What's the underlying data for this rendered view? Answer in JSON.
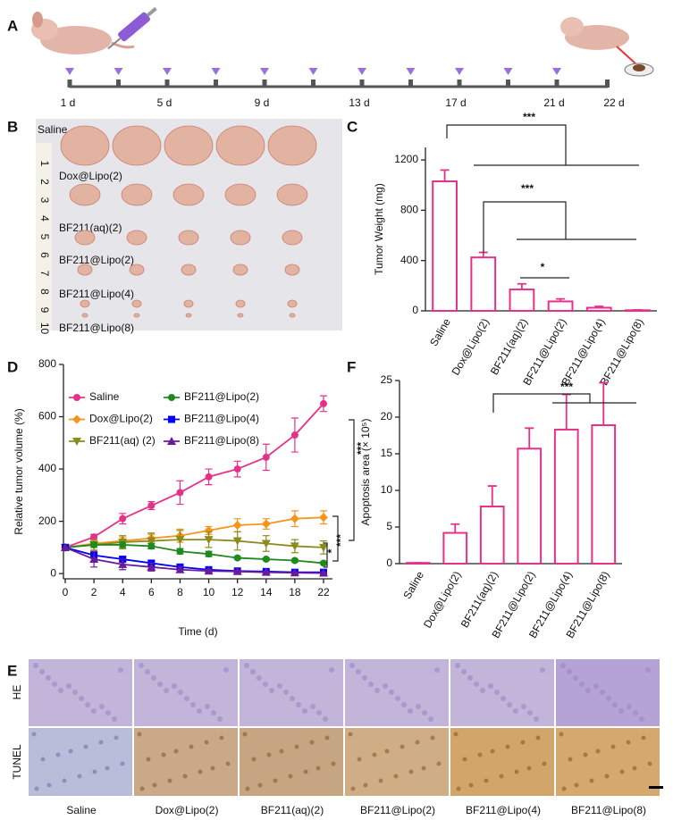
{
  "panel_a": {
    "label": "A",
    "days": [
      "1 d",
      "5 d",
      "9 d",
      "13 d",
      "17 d",
      "21 d",
      "22 d"
    ]
  },
  "panel_b": {
    "label": "B",
    "ruler": [
      "1",
      "2",
      "3",
      "4",
      "5",
      "6",
      "7",
      "8",
      "9",
      "10"
    ],
    "groups": [
      "Saline",
      "Dox@Lipo(2)",
      "BF211(aq)(2)",
      "BF211@Lipo(2)",
      "BF211@Lipo(4)",
      "BF211@Lipo(8)"
    ]
  },
  "panel_e": {
    "label": "E",
    "rows": [
      "HE",
      "TUNEL"
    ],
    "columns": [
      "Saline",
      "Dox@Lipo(2)",
      "BF211(aq)(2)",
      "BF211@Lipo(2)",
      "BF211@Lipo(4)",
      "BF211@Lipo(8)"
    ]
  },
  "chart_data": [
    {
      "type": "bar",
      "label": "C",
      "y_label": "Tumor Weight (mg)",
      "categories": [
        "Saline",
        "Dox@Lipo(2)",
        "BF211(aq)(2)",
        "BF211@Lipo(2)",
        "BF211@Lipo(4)",
        "BF211@Lipo(8)"
      ],
      "values": [
        1030,
        425,
        170,
        75,
        25,
        5
      ],
      "errors": [
        90,
        40,
        45,
        20,
        10,
        3
      ],
      "color": "#e6318b",
      "ylim": [
        0,
        1300
      ],
      "yticks": [
        0,
        400,
        800,
        1200
      ],
      "annotations": [
        "***",
        "***",
        "*"
      ]
    },
    {
      "type": "line",
      "label": "D",
      "y_label": "Relative tumor volume (%)",
      "x_label": "Time (d)",
      "categories": [
        "0",
        "2",
        "4",
        "6",
        "8",
        "10",
        "12",
        "14",
        "18",
        "22"
      ],
      "ylim": [
        -20,
        800
      ],
      "yticks": [
        0,
        200,
        400,
        600,
        800
      ],
      "series": [
        {
          "name": "Saline",
          "color": "#e6318b",
          "marker": "circle",
          "values": [
            100,
            140,
            210,
            260,
            310,
            370,
            400,
            445,
            530,
            650
          ],
          "errors": [
            0,
            10,
            20,
            15,
            45,
            30,
            30,
            50,
            65,
            30
          ]
        },
        {
          "name": "Dox@Lipo(2)",
          "color": "#f7941d",
          "marker": "diamond",
          "values": [
            100,
            115,
            125,
            135,
            145,
            165,
            185,
            190,
            210,
            215
          ],
          "errors": [
            0,
            10,
            15,
            15,
            25,
            15,
            25,
            20,
            30,
            25
          ]
        },
        {
          "name": "BF211(aq) (2)",
          "color": "#8b8b1e",
          "marker": "triangle-down",
          "values": [
            100,
            110,
            120,
            125,
            130,
            130,
            125,
            115,
            105,
            100
          ],
          "errors": [
            0,
            20,
            25,
            30,
            35,
            30,
            35,
            30,
            25,
            25
          ]
        },
        {
          "name": "BF211@Lipo(2)",
          "color": "#1f8a1f",
          "marker": "circle",
          "values": [
            100,
            110,
            110,
            105,
            85,
            75,
            60,
            55,
            50,
            40
          ],
          "errors": [
            0,
            10,
            10,
            10,
            10,
            10,
            5,
            5,
            5,
            5
          ]
        },
        {
          "name": "BF211@Lipo(4)",
          "color": "#0000ff",
          "marker": "square",
          "values": [
            100,
            70,
            55,
            40,
            25,
            15,
            10,
            8,
            5,
            5
          ],
          "errors": [
            0,
            10,
            10,
            10,
            5,
            5,
            3,
            3,
            2,
            2
          ]
        },
        {
          "name": "BF211@Lipo(8)",
          "color": "#6a1b9a",
          "marker": "triangle",
          "values": [
            100,
            55,
            35,
            25,
            15,
            10,
            8,
            5,
            3,
            2
          ],
          "errors": [
            0,
            30,
            20,
            15,
            10,
            5,
            5,
            3,
            2,
            2
          ]
        }
      ],
      "annotations": [
        "***",
        "***",
        "*"
      ]
    },
    {
      "type": "bar",
      "label": "F",
      "y_label": "Apoptosis area (× 10⁵)",
      "categories": [
        "Saline",
        "Dox@Lipo(2)",
        "BF211(aq)(2)",
        "BF211@Lipo(2)",
        "BF211@Lipo(4)",
        "BF211@Lipo(8)"
      ],
      "values": [
        0.1,
        4.2,
        7.8,
        15.7,
        18.3,
        18.9
      ],
      "errors": [
        0,
        1.2,
        2.8,
        2.8,
        4.8,
        5.8
      ],
      "color": "#e6318b",
      "ylim": [
        0,
        25
      ],
      "yticks": [
        0,
        5,
        10,
        15,
        20,
        25
      ],
      "annotations": [
        "***"
      ]
    }
  ]
}
